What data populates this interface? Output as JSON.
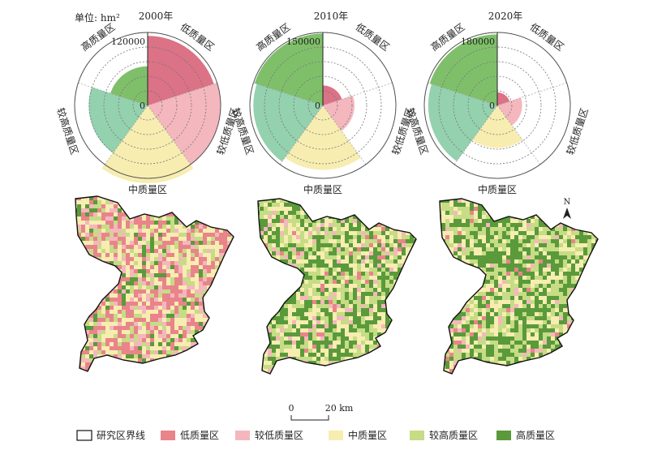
{
  "unit_label": "单位: hm²",
  "colors": {
    "low": "#e9848b",
    "low_polar": "#db7285",
    "lower": "#f4b7bd",
    "middle": "#f7edb1",
    "higher": "#c6dc85",
    "higher_polar": "#94d1ae",
    "high": "#5a9a3b",
    "high_polar": "#7fbf6a"
  },
  "chart_data": [
    {
      "type": "polar_area",
      "title": "2000年",
      "categories": [
        "低质量区",
        "较低质量区",
        "中质量区",
        "较高质量区",
        "高质量区"
      ],
      "values": [
        120000,
        132000,
        150000,
        86000,
        38000
      ],
      "rmax": 132000,
      "tick_label": "120000",
      "zero_label": "0"
    },
    {
      "type": "polar_area",
      "title": "2010年",
      "categories": [
        "低质量区",
        "较低质量区",
        "中质量区",
        "较高质量区",
        "高质量区"
      ],
      "values": [
        12000,
        30000,
        125000,
        145000,
        155000
      ],
      "rmax": 160000,
      "tick_label": "150000",
      "zero_label": "0"
    },
    {
      "type": "polar_area",
      "title": "2020年",
      "categories": [
        "低质量区",
        "较低质量区",
        "中质量区",
        "较高质量区",
        "高质量区"
      ],
      "values": [
        6000,
        22000,
        65000,
        170000,
        180000
      ],
      "rmax": 190000,
      "tick_label": "180000",
      "zero_label": "0"
    }
  ],
  "maps": [
    {
      "year": "2000年",
      "composition": {
        "低质量区": 0.34,
        "较低质量区": 0.13,
        "中质量区": 0.28,
        "较高质量区": 0.17,
        "高质量区": 0.08
      }
    },
    {
      "year": "2010年",
      "composition": {
        "低质量区": 0.03,
        "较低质量区": 0.08,
        "中质量区": 0.28,
        "较高质量区": 0.26,
        "高质量区": 0.35
      }
    },
    {
      "year": "2020年",
      "composition": {
        "低质量区": 0.01,
        "较低质量区": 0.07,
        "中质量区": 0.22,
        "较高质量区": 0.3,
        "高质量区": 0.4
      }
    }
  ],
  "north_label": "N",
  "scalebar": {
    "start": "0",
    "end": "20 km"
  },
  "legend": [
    {
      "key": "boundary",
      "label": "研究区界线"
    },
    {
      "key": "low",
      "label": "低质量区"
    },
    {
      "key": "lower",
      "label": "较低质量区"
    },
    {
      "key": "middle",
      "label": "中质量区"
    },
    {
      "key": "higher",
      "label": "较高质量区"
    },
    {
      "key": "high",
      "label": "高质量区"
    }
  ]
}
